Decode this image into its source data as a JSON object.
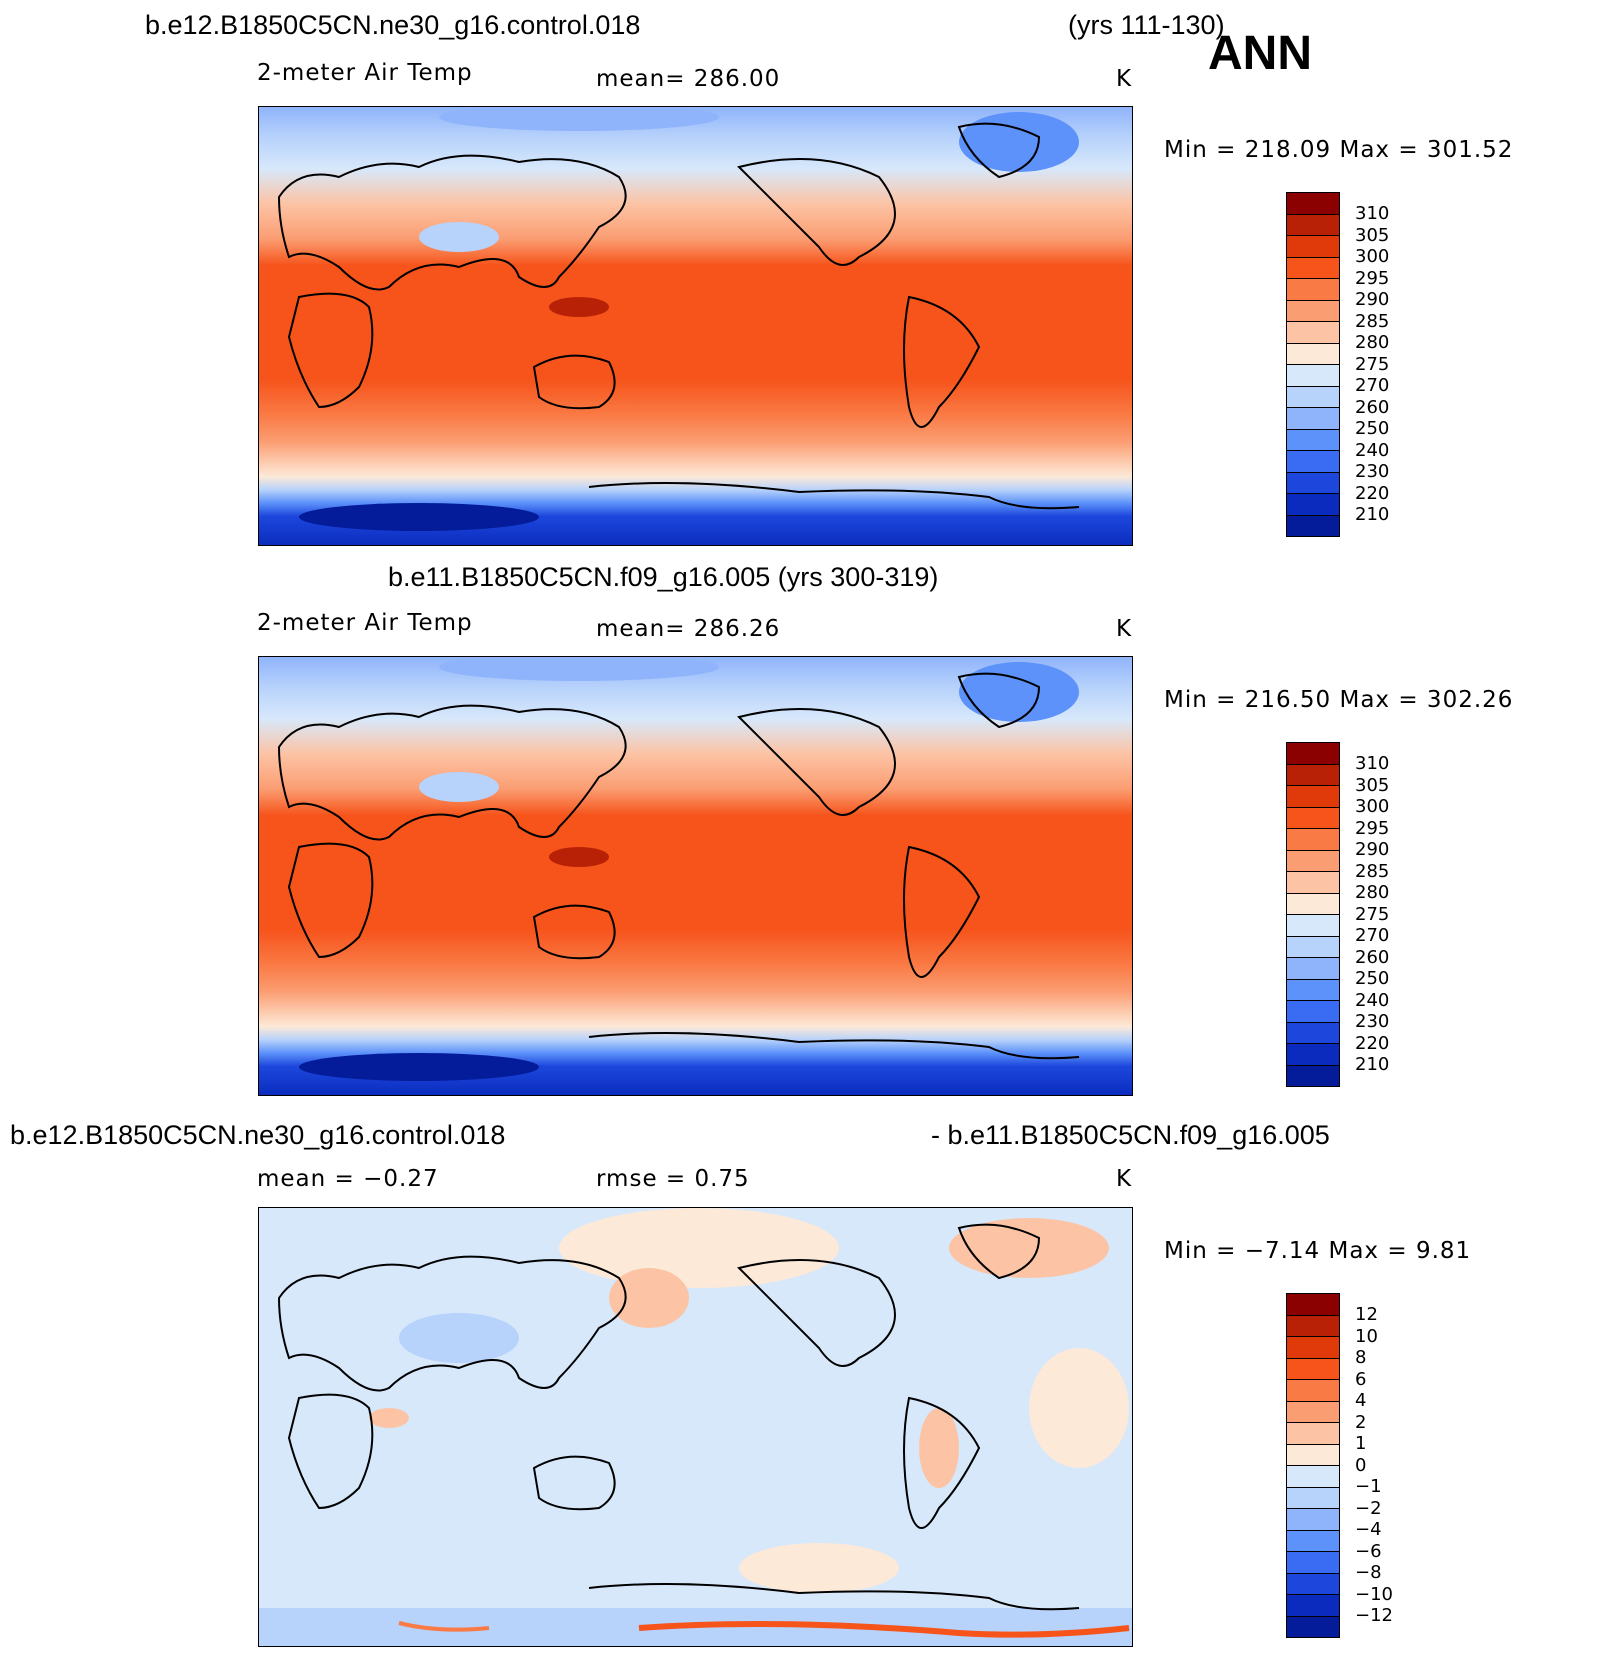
{
  "header": {
    "case1": "b.e12.B1850C5CN.ne30_g16.control.018",
    "years1": "(yrs 111-130)",
    "season": "ANN"
  },
  "panels": [
    {
      "variable": "2-meter Air Temp",
      "mean_text": "mean=  286.00",
      "units": "K",
      "minmax_text": "Min  =  218.09  Max  =  301.52",
      "kind": "abs"
    },
    {
      "title": "b.e11.B1850C5CN.f09_g16.005 (yrs 300-319)",
      "variable": "2-meter Air Temp",
      "mean_text": "mean=  286.26",
      "units": "K",
      "minmax_text": "Min  =  216.50  Max  =  302.26",
      "kind": "abs"
    },
    {
      "title_left": "b.e12.B1850C5CN.ne30_g16.control.018",
      "title_right": "- b.e11.B1850C5CN.f09_g16.005",
      "mean_text": "mean  =    −0.27",
      "rmse_text": "rmse  =     0.75",
      "units": "K",
      "minmax_text": "Min  =    −7.14  Max  =     9.81",
      "kind": "diff"
    }
  ],
  "colorbar_abs": {
    "labels": [
      "310",
      "305",
      "300",
      "295",
      "290",
      "285",
      "280",
      "275",
      "270",
      "260",
      "250",
      "240",
      "230",
      "220",
      "210"
    ],
    "colors": [
      "#8b0000",
      "#b82105",
      "#e03a0b",
      "#f6541b",
      "#fa7a45",
      "#fb9d72",
      "#fcc4a5",
      "#fde9d8",
      "#d7e8fb",
      "#b7d2fb",
      "#8fb4fb",
      "#5d92fa",
      "#3a6cf3",
      "#1d47dc",
      "#0a2bbd",
      "#041c99"
    ]
  },
  "colorbar_diff": {
    "labels": [
      "12",
      "10",
      "8",
      "6",
      "4",
      "2",
      "1",
      "0",
      "−1",
      "−2",
      "−4",
      "−6",
      "−8",
      "−10",
      "−12"
    ],
    "colors": [
      "#8b0000",
      "#b82105",
      "#e03a0b",
      "#f6541b",
      "#fa7a45",
      "#fb9d72",
      "#fcc4a5",
      "#fde9d8",
      "#d7e8fb",
      "#b7d2fb",
      "#8fb4fb",
      "#5d92fa",
      "#3a6cf3",
      "#1d47dc",
      "#0a2bbd",
      "#041c99"
    ]
  }
}
